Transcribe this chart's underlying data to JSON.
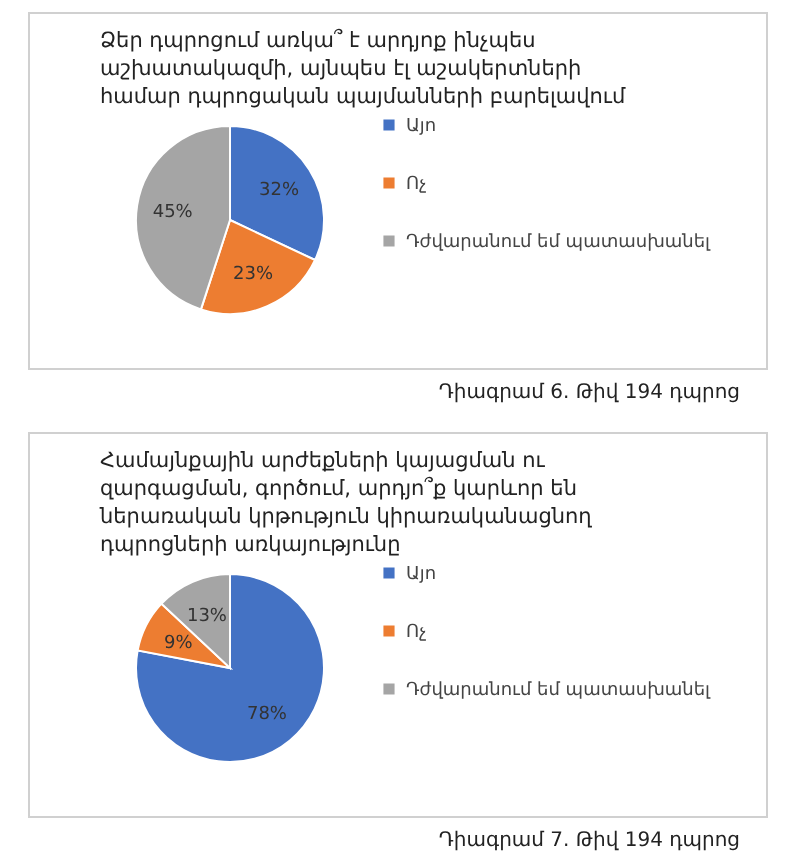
{
  "chart_data": [
    {
      "type": "pie",
      "title": "Ձեր դպրոցում առկա՞ է արդյոք ինչպես աշխատակազմի, այնպես էլ աշակերտների համար դպրոցական պայմանների բարելավում",
      "categories": [
        "Այո",
        "Ոչ",
        "Դժվարանում եմ պատասխանել"
      ],
      "values": [
        32,
        23,
        45
      ],
      "colors": [
        "#4472c4",
        "#ed7d31",
        "#a5a5a5"
      ],
      "value_labels": [
        "32%",
        "23%",
        "45%"
      ],
      "legend": "right",
      "annotations": [
        "Դիագրամ 6. Թիվ 194 դպրոց"
      ]
    },
    {
      "type": "pie",
      "title": "Համայնքային արժեքների կայացման ու զարգացման, գործում, արդյո՞ք կարևոր են ներառական կրթություն կիրառականացնող դպրոցների առկայությունը",
      "categories": [
        "Այո",
        "Ոչ",
        "Դժվարանում եմ պատասխանել"
      ],
      "values": [
        78,
        9,
        13
      ],
      "colors": [
        "#4472c4",
        "#ed7d31",
        "#a5a5a5"
      ],
      "value_labels": [
        "78%",
        "9%",
        "13%"
      ],
      "legend": "right",
      "annotations": [
        "Դիագրամ 7. Թիվ 194 դպրոց"
      ]
    }
  ]
}
